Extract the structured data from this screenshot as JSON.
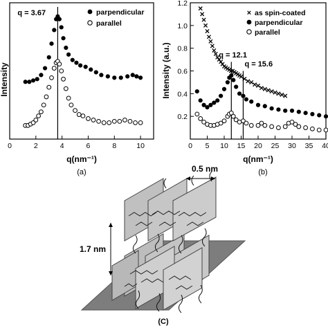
{
  "chart_data": [
    {
      "type": "scatter",
      "panel_label": "(a)",
      "xlabel": "q(nm⁻¹)",
      "ylabel": "Intensity",
      "xlim": [
        0,
        11
      ],
      "ylim": [
        0,
        1
      ],
      "x_ticks": [
        "0",
        "2",
        "4",
        "6",
        "8",
        "10"
      ],
      "annotation": "q = 3.67",
      "marker_line_x": 3.67,
      "series": [
        {
          "name": "parpendicular",
          "marker": "filled-circle",
          "x": [
            1.2,
            1.5,
            1.8,
            2.1,
            2.4,
            2.7,
            3.0,
            3.2,
            3.4,
            3.55,
            3.67,
            3.8,
            3.95,
            4.1,
            4.3,
            4.5,
            4.8,
            5.1,
            5.4,
            5.8,
            6.2,
            6.6,
            7.0,
            7.5,
            8.0,
            8.5,
            9.0,
            9.4,
            9.7,
            10.0
          ],
          "values": [
            0.42,
            0.42,
            0.43,
            0.44,
            0.47,
            0.52,
            0.6,
            0.7,
            0.8,
            0.88,
            0.9,
            0.88,
            0.82,
            0.74,
            0.67,
            0.62,
            0.58,
            0.56,
            0.54,
            0.53,
            0.51,
            0.49,
            0.47,
            0.46,
            0.45,
            0.45,
            0.46,
            0.47,
            0.46,
            0.45
          ]
        },
        {
          "name": "parallel",
          "marker": "open-circle",
          "x": [
            1.2,
            1.4,
            1.6,
            1.8,
            2.0,
            2.2,
            2.4,
            2.6,
            2.8,
            3.0,
            3.2,
            3.4,
            3.55,
            3.67,
            3.8,
            3.95,
            4.1,
            4.3,
            4.5,
            4.7,
            5.0,
            5.3,
            5.6,
            6.0,
            6.4,
            6.8,
            7.2,
            7.6,
            8.0,
            8.4,
            8.8,
            9.2,
            9.6,
            10.0
          ],
          "values": [
            0.1,
            0.1,
            0.11,
            0.12,
            0.14,
            0.17,
            0.2,
            0.25,
            0.31,
            0.38,
            0.45,
            0.52,
            0.56,
            0.57,
            0.55,
            0.5,
            0.44,
            0.37,
            0.3,
            0.25,
            0.21,
            0.18,
            0.17,
            0.15,
            0.14,
            0.13,
            0.12,
            0.12,
            0.13,
            0.13,
            0.14,
            0.13,
            0.12,
            0.12
          ]
        }
      ]
    },
    {
      "type": "scatter",
      "panel_label": "(b)",
      "xlabel": "q(nm⁻¹)",
      "ylabel": "Intensity (a.u.)",
      "xlim": [
        0,
        40
      ],
      "ylim": [
        0,
        1.2
      ],
      "x_ticks": [
        "0",
        "5",
        "10",
        "15",
        "20",
        "25",
        "30",
        "35",
        "40"
      ],
      "y_ticks": [
        "0.2",
        "0.4",
        "0.6",
        "0.8",
        "1.0",
        "1.2"
      ],
      "annotations": [
        "q = 12.1",
        "q = 15.6"
      ],
      "marker_lines_x": [
        12.1,
        15.6
      ],
      "series": [
        {
          "name": "as spin-coated",
          "marker": "x",
          "x": [
            3,
            3.5,
            4,
            4.5,
            5,
            5.5,
            6,
            6.5,
            7,
            7.5,
            8,
            8.5,
            9,
            9.5,
            10,
            10.5,
            11,
            11.5,
            12,
            12.5,
            13,
            13.5,
            14,
            14.5,
            15,
            16,
            17,
            18,
            19,
            20,
            21,
            22,
            23,
            24,
            25,
            26,
            27,
            28
          ],
          "values": [
            1.15,
            1.1,
            1.05,
            1.0,
            0.95,
            0.9,
            0.86,
            0.82,
            0.78,
            0.75,
            0.72,
            0.7,
            0.68,
            0.66,
            0.64,
            0.63,
            0.62,
            0.61,
            0.6,
            0.6,
            0.59,
            0.58,
            0.57,
            0.56,
            0.55,
            0.53,
            0.51,
            0.5,
            0.48,
            0.47,
            0.45,
            0.44,
            0.43,
            0.42,
            0.41,
            0.4,
            0.39,
            0.38
          ]
        },
        {
          "name": "parpendicular",
          "marker": "filled-circle",
          "x": [
            2,
            3,
            4,
            5,
            6,
            7,
            8,
            9,
            10,
            11,
            11.5,
            12.1,
            12.7,
            13.5,
            14.5,
            15.6,
            16.5,
            18,
            20,
            22,
            24,
            26,
            28,
            30,
            32,
            34,
            36,
            38,
            40
          ],
          "values": [
            0.42,
            0.34,
            0.3,
            0.28,
            0.3,
            0.32,
            0.34,
            0.38,
            0.44,
            0.5,
            0.54,
            0.56,
            0.52,
            0.46,
            0.4,
            0.38,
            0.35,
            0.33,
            0.3,
            0.29,
            0.27,
            0.26,
            0.25,
            0.25,
            0.24,
            0.23,
            0.22,
            0.21,
            0.2
          ]
        },
        {
          "name": "parallel",
          "marker": "open-circle",
          "x": [
            2,
            3,
            4,
            5,
            6,
            7,
            8,
            9,
            10,
            11,
            11.5,
            12.1,
            12.7,
            13.5,
            14.5,
            15.6,
            16.5,
            18,
            20,
            21,
            22,
            24,
            26,
            28,
            29,
            30,
            31,
            32,
            34,
            36,
            38,
            40
          ],
          "values": [
            0.22,
            0.18,
            0.15,
            0.13,
            0.12,
            0.12,
            0.13,
            0.14,
            0.16,
            0.2,
            0.22,
            0.23,
            0.2,
            0.17,
            0.15,
            0.16,
            0.14,
            0.12,
            0.12,
            0.14,
            0.12,
            0.11,
            0.1,
            0.11,
            0.14,
            0.15,
            0.13,
            0.11,
            0.1,
            0.09,
            0.08,
            0.08
          ]
        }
      ]
    }
  ],
  "diagram": {
    "panel_label": "(C)",
    "width_label": "0.5 nm",
    "height_label": "1.7 nm"
  }
}
